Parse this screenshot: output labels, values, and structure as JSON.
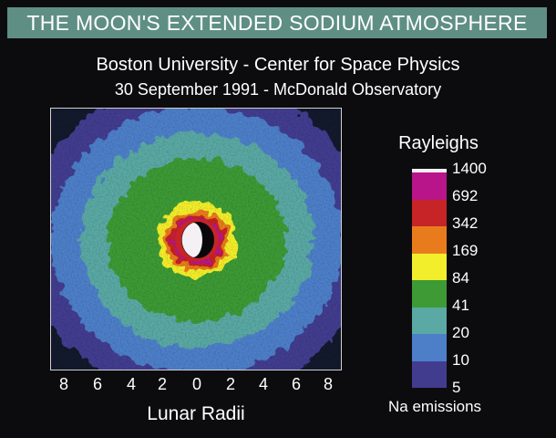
{
  "title": "THE MOON'S EXTENDED SODIUM ATMOSPHERE",
  "subtitle_line1": "Boston University - Center for Space Physics",
  "subtitle_line2": "30 September 1991 - McDonald Observatory",
  "x_axis_label": "Lunar Radii",
  "x_tick_labels": [
    "8",
    "6",
    "4",
    "2",
    "0",
    "2",
    "4",
    "6",
    "8"
  ],
  "colorbar": {
    "title": "Rayleighs",
    "footer": "Na emissions",
    "levels": [
      {
        "label": "1400",
        "color": "#f4f0f4"
      },
      {
        "label": "692",
        "color": "#b8158a"
      },
      {
        "label": "342",
        "color": "#c62426"
      },
      {
        "label": "169",
        "color": "#e87c1d"
      },
      {
        "label": "84",
        "color": "#f3ee2c"
      },
      {
        "label": "41",
        "color": "#3d9a34"
      },
      {
        "label": "20",
        "color": "#5aa9a4"
      },
      {
        "label": "10",
        "color": "#4d7fc9"
      },
      {
        "label": "5",
        "color": "#423c8f"
      }
    ]
  },
  "colors": {
    "title_bar_bg": "#5f8f84",
    "background": "#0c0c0f"
  }
}
